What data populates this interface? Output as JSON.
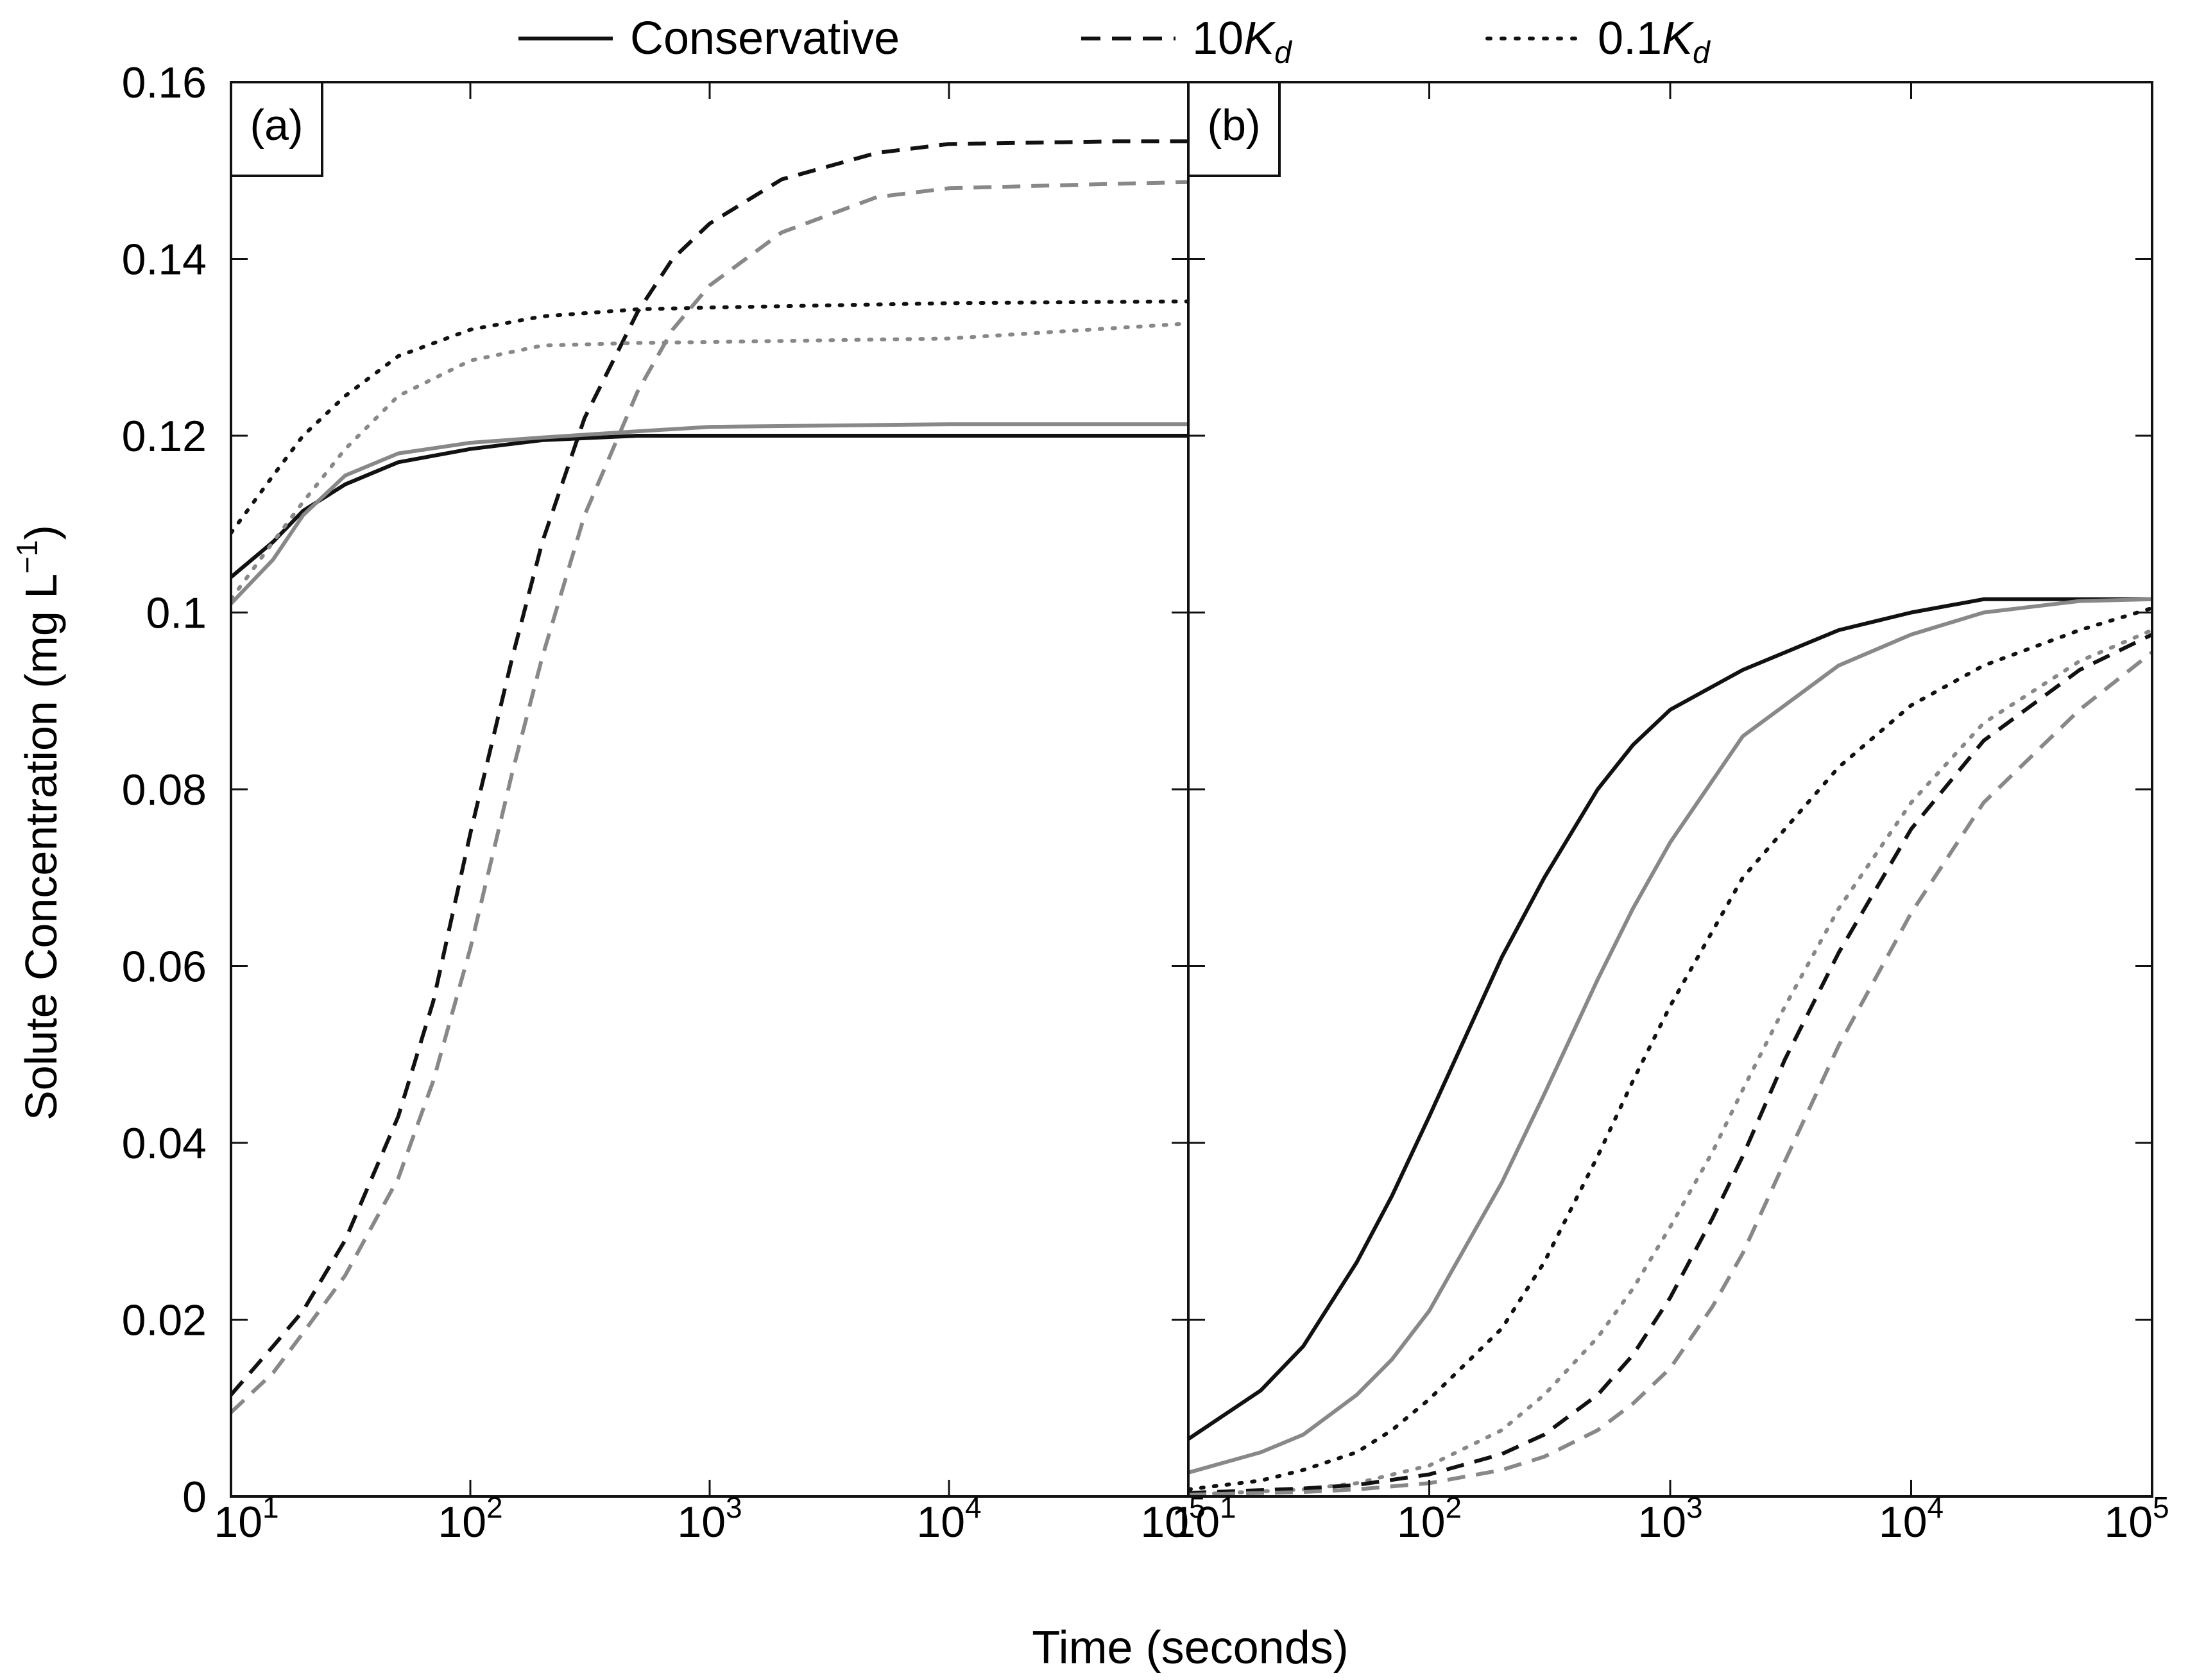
{
  "chart_data": {
    "type": "line",
    "xlabel": "Time (seconds)",
    "ylabel": "Solute Concentration (mg L",
    "ylabel_sup": "−1",
    "ylabel_close": ")",
    "xscale": "log",
    "xlim": [
      10,
      100000
    ],
    "ylim": [
      0,
      0.16
    ],
    "y_ticks": [
      "0",
      "0.02",
      "0.04",
      "0.06",
      "0.08",
      "0.1",
      "0.12",
      "0.14",
      "0.16"
    ],
    "x_tick_base": "10",
    "x_tick_exponents": [
      "1",
      "2",
      "3",
      "4",
      "5"
    ],
    "colors": {
      "black": "#111111",
      "gray": "#888888"
    },
    "legend": [
      {
        "label": "Conservative",
        "style": "solid"
      },
      {
        "label": "10",
        "italic": "K",
        "sub": "d",
        "style": "dashed"
      },
      {
        "label": "0.1",
        "italic": "K",
        "sub": "d",
        "style": "dotted"
      }
    ],
    "panels": [
      {
        "label": "(a)",
        "series": [
          {
            "name": "Conservative (black)",
            "style": "solid",
            "color": "black",
            "x": [
              10,
              15,
              20,
              30,
              50,
              100,
              200,
              500,
              1000,
              10000,
              100000
            ],
            "y": [
              0.104,
              0.108,
              0.1115,
              0.1145,
              0.117,
              0.1185,
              0.1195,
              0.12,
              0.12,
              0.12,
              0.12
            ]
          },
          {
            "name": "Conservative (gray)",
            "style": "solid",
            "color": "gray",
            "x": [
              10,
              15,
              20,
              30,
              50,
              100,
              200,
              500,
              1000,
              10000,
              100000
            ],
            "y": [
              0.101,
              0.106,
              0.111,
              0.1155,
              0.118,
              0.1192,
              0.1198,
              0.1205,
              0.121,
              0.1213,
              0.1213
            ]
          },
          {
            "name": "10Kd (black)",
            "style": "dashed",
            "color": "black",
            "x": [
              10,
              15,
              20,
              30,
              50,
              70,
              100,
              150,
              200,
              300,
              500,
              700,
              1000,
              2000,
              5000,
              10000,
              50000,
              100000
            ],
            "y": [
              0.0115,
              0.017,
              0.021,
              0.029,
              0.043,
              0.056,
              0.075,
              0.095,
              0.108,
              0.122,
              0.134,
              0.14,
              0.144,
              0.149,
              0.152,
              0.153,
              0.1533,
              0.1533
            ]
          },
          {
            "name": "10Kd (gray)",
            "style": "dashed",
            "color": "gray",
            "x": [
              10,
              15,
              20,
              30,
              50,
              70,
              100,
              150,
              200,
              300,
              500,
              700,
              1000,
              2000,
              5000,
              10000,
              50000,
              100000
            ],
            "y": [
              0.0095,
              0.014,
              0.0185,
              0.025,
              0.036,
              0.047,
              0.062,
              0.082,
              0.095,
              0.111,
              0.125,
              0.132,
              0.137,
              0.143,
              0.147,
              0.148,
              0.1485,
              0.1487
            ]
          },
          {
            "name": "0.1Kd (black)",
            "style": "dotted",
            "color": "black",
            "x": [
              10,
              15,
              20,
              30,
              50,
              100,
              200,
              500,
              1000,
              10000,
              100000
            ],
            "y": [
              0.109,
              0.1155,
              0.12,
              0.1245,
              0.129,
              0.132,
              0.1335,
              0.1343,
              0.1345,
              0.135,
              0.1352
            ]
          },
          {
            "name": "0.1Kd (gray)",
            "style": "dotted",
            "color": "gray",
            "x": [
              10,
              15,
              20,
              30,
              50,
              100,
              200,
              500,
              1000,
              10000,
              100000
            ],
            "y": [
              0.1015,
              0.108,
              0.1125,
              0.1185,
              0.1245,
              0.1285,
              0.1302,
              0.1305,
              0.1306,
              0.131,
              0.1327
            ]
          }
        ]
      },
      {
        "label": "(b)",
        "series": [
          {
            "name": "Conservative (black)",
            "style": "solid",
            "color": "black",
            "x": [
              10,
              20,
              30,
              50,
              70,
              100,
              200,
              300,
              500,
              700,
              1000,
              2000,
              5000,
              10000,
              20000,
              50000,
              100000
            ],
            "y": [
              0.0065,
              0.012,
              0.017,
              0.0265,
              0.034,
              0.043,
              0.061,
              0.07,
              0.08,
              0.085,
              0.089,
              0.0935,
              0.098,
              0.1,
              0.1015,
              0.1015,
              0.1015
            ]
          },
          {
            "name": "Conservative (gray)",
            "style": "solid",
            "color": "gray",
            "x": [
              10,
              20,
              30,
              50,
              70,
              100,
              200,
              300,
              500,
              700,
              1000,
              2000,
              5000,
              10000,
              20000,
              50000,
              100000
            ],
            "y": [
              0.0027,
              0.005,
              0.007,
              0.0115,
              0.0155,
              0.021,
              0.0355,
              0.0455,
              0.0585,
              0.0665,
              0.074,
              0.086,
              0.094,
              0.0975,
              0.1,
              0.1013,
              0.1015
            ]
          },
          {
            "name": "0.1Kd (black)",
            "style": "dotted",
            "color": "black",
            "x": [
              10,
              20,
              30,
              50,
              70,
              100,
              200,
              300,
              500,
              700,
              1000,
              2000,
              5000,
              10000,
              20000,
              50000,
              100000
            ],
            "y": [
              0.0008,
              0.0018,
              0.003,
              0.005,
              0.0075,
              0.011,
              0.019,
              0.0265,
              0.0385,
              0.047,
              0.0555,
              0.07,
              0.0825,
              0.0895,
              0.094,
              0.098,
              0.1005
            ]
          },
          {
            "name": "0.1Kd (gray)",
            "style": "dotted",
            "color": "gray",
            "x": [
              10,
              30,
              50,
              100,
              200,
              300,
              500,
              700,
              1000,
              1500,
              2000,
              3000,
              5000,
              10000,
              20000,
              50000,
              100000
            ],
            "y": [
              0.0002,
              0.0008,
              0.0015,
              0.0035,
              0.0075,
              0.0115,
              0.018,
              0.0235,
              0.0305,
              0.039,
              0.046,
              0.0555,
              0.0665,
              0.0785,
              0.0875,
              0.0945,
              0.098
            ]
          },
          {
            "name": "10Kd (black)",
            "style": "dashed",
            "color": "black",
            "x": [
              10,
              30,
              50,
              100,
              200,
              300,
              500,
              700,
              1000,
              1500,
              2000,
              3000,
              5000,
              10000,
              20000,
              50000,
              100000
            ],
            "y": [
              0.0004,
              0.0009,
              0.0013,
              0.0025,
              0.0048,
              0.007,
              0.0115,
              0.016,
              0.0225,
              0.0315,
              0.0385,
              0.0495,
              0.0615,
              0.0755,
              0.0855,
              0.0935,
              0.0975
            ]
          },
          {
            "name": "10Kd (gray)",
            "style": "dashed",
            "color": "gray",
            "x": [
              10,
              30,
              50,
              100,
              200,
              300,
              500,
              700,
              1000,
              1500,
              2000,
              3000,
              5000,
              10000,
              20000,
              50000,
              100000
            ],
            "y": [
              0.0002,
              0.0005,
              0.0008,
              0.0015,
              0.003,
              0.0045,
              0.0075,
              0.0105,
              0.0145,
              0.0215,
              0.0275,
              0.038,
              0.051,
              0.066,
              0.0785,
              0.089,
              0.0955
            ]
          }
        ]
      }
    ]
  }
}
